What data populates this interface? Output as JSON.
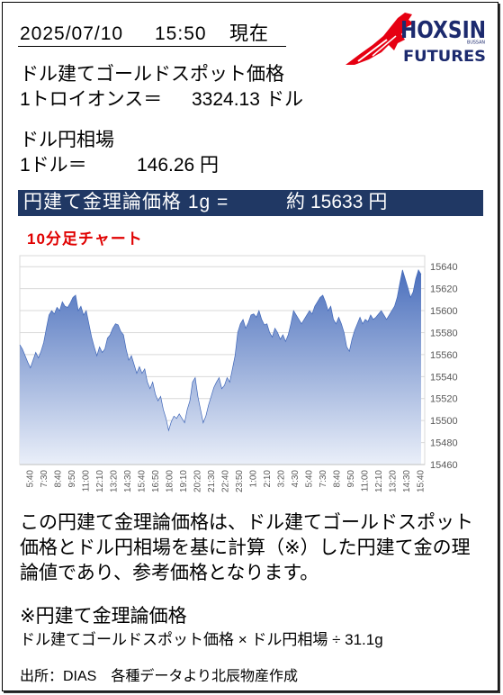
{
  "header": {
    "date": "2025/07/10",
    "time": "15:50",
    "as_of": "現在"
  },
  "logo": {
    "main": "HOXSIN",
    "small": "BUSSAN",
    "sub": "FUTURES"
  },
  "gold_spot": {
    "title": "ドル建てゴールドスポット価格",
    "label": "1トロイオンス＝",
    "value": "3324.13",
    "unit": "ドル"
  },
  "usdjpy": {
    "title": "ドル円相場",
    "label": "1ドル＝",
    "value": "146.26",
    "unit": "円"
  },
  "theory_price": {
    "label": "円建て金理論価格 1g =",
    "value_prefix": "約",
    "value": "15633",
    "unit": "円"
  },
  "chart_data": {
    "type": "area",
    "title": "10分足チャート",
    "xlabel": "",
    "ylabel": "",
    "ylim": [
      15460,
      15650
    ],
    "y_axis_position": "right",
    "y_ticks": [
      15460,
      15480,
      15500,
      15520,
      15540,
      15560,
      15580,
      15600,
      15620,
      15640
    ],
    "x_tick_labels": [
      "5:40",
      "7:30",
      "8:40",
      "9:50",
      "11:00",
      "12:10",
      "13:20",
      "14:30",
      "15:40",
      "16:50",
      "18:00",
      "19:10",
      "20:20",
      "21:30",
      "22:40",
      "23:50",
      "1:00",
      "2:10",
      "3:20",
      "4:30",
      "5:40",
      "7:30",
      "8:40",
      "9:50",
      "11:00",
      "12:10",
      "13:20",
      "14:30",
      "15:40"
    ],
    "grid": true,
    "legend": "none",
    "series": [
      {
        "values": [
          15569,
          15565,
          15559,
          15553,
          15548,
          15555,
          15562,
          15557,
          15563,
          15571,
          15584,
          15596,
          15600,
          15597,
          15603,
          15600,
          15608,
          15604,
          15603,
          15607,
          15612,
          15614,
          15600,
          15604,
          15596,
          15600,
          15588,
          15576,
          15567,
          15559,
          15567,
          15562,
          15565,
          15575,
          15578,
          15584,
          15588,
          15587,
          15581,
          15578,
          15565,
          15555,
          15559,
          15551,
          15543,
          15549,
          15543,
          15547,
          15535,
          15529,
          15535,
          15524,
          15518,
          15522,
          15510,
          15502,
          15491,
          15499,
          15504,
          15502,
          15506,
          15502,
          15498,
          15510,
          15518,
          15535,
          15539,
          15522,
          15510,
          15498,
          15504,
          15514,
          15522,
          15530,
          15535,
          15539,
          15529,
          15532,
          15539,
          15535,
          15547,
          15559,
          15580,
          15588,
          15592,
          15584,
          15589,
          15596,
          15597,
          15594,
          15600,
          15592,
          15587,
          15588,
          15580,
          15576,
          15584,
          15580,
          15574,
          15578,
          15572,
          15578,
          15588,
          15600,
          15596,
          15592,
          15588,
          15592,
          15596,
          15600,
          15597,
          15604,
          15608,
          15612,
          15614,
          15608,
          15600,
          15604,
          15592,
          15588,
          15594,
          15588,
          15580,
          15567,
          15563,
          15574,
          15582,
          15588,
          15594,
          15588,
          15592,
          15590,
          15596,
          15592,
          15594,
          15597,
          15600,
          15596,
          15592,
          15596,
          15600,
          15604,
          15612,
          15625,
          15637,
          15629,
          15621,
          15612,
          15617,
          15629,
          15637,
          15633
        ]
      }
    ]
  },
  "notes": {
    "explanation": [
      "この円建て金理論価格は、ドル建てゴールドスポット",
      "価格とドル円相場を基に計算（※）した円建て金の理",
      "論値であり、参考価格となります。"
    ],
    "formula_title": "※円建て金理論価格",
    "formula": "ドル建てゴールドスポット価格 × ドル円相場 ÷ 31.1g"
  },
  "source": "出所：DIAS　各種データより北辰物産作成",
  "styles": {
    "logo_red": "#e60012",
    "logo_navy": "#1c2a6e",
    "bar_navy": "#203864",
    "caption_red": "#e00000",
    "area_top": "#3f66b8",
    "area_bottom": "#eaeff9",
    "grid": "#d9d9d9",
    "axis_text": "#595959"
  }
}
